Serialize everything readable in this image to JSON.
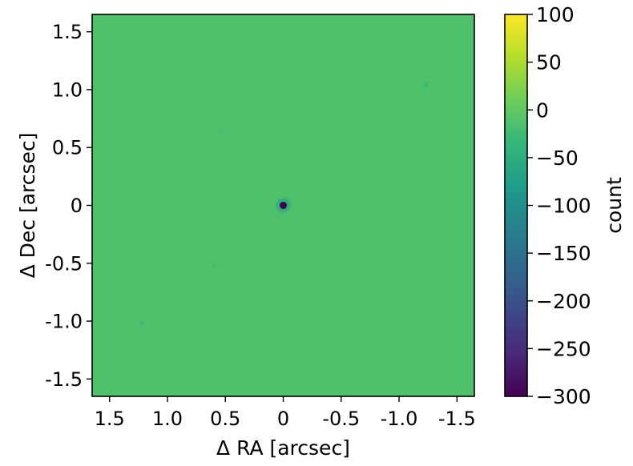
{
  "chart_data": {
    "type": "heatmap",
    "title": "",
    "xlabel": "Δ RA [arcsec]",
    "ylabel": "Δ Dec [arcsec]",
    "xlim": [
      1.65,
      -1.65
    ],
    "ylim": [
      -1.65,
      1.65
    ],
    "x_ticks": [
      1.5,
      1.0,
      0.5,
      0,
      -0.5,
      -1.0,
      -1.5
    ],
    "x_tick_labels": [
      "1.5",
      "1.0",
      "0.5",
      "0",
      "-0.5",
      "-1.0",
      "-1.5"
    ],
    "y_ticks": [
      1.5,
      1.0,
      0.5,
      0,
      -0.5,
      -1.0,
      -1.5
    ],
    "y_tick_labels": [
      "1.5",
      "1.0",
      "0.5",
      "0",
      "-0.5",
      "-1.0",
      "-1.5"
    ],
    "background_value": 0,
    "features": [
      {
        "x": 0.0,
        "y": 0.0,
        "value": -300
      },
      {
        "x": -1.23,
        "y": 1.04,
        "value": -60
      },
      {
        "x": 0.53,
        "y": 0.63,
        "value": -25
      },
      {
        "x": -0.6,
        "y": 0.52,
        "value": -20
      },
      {
        "x": 0.6,
        "y": -0.52,
        "value": -30
      },
      {
        "x": 1.22,
        "y": -1.02,
        "value": -35
      }
    ],
    "colorbar": {
      "label": "count",
      "colormap": "viridis",
      "range": [
        -300,
        100
      ],
      "ticks": [
        100,
        50,
        0,
        -50,
        -100,
        -150,
        -200,
        -250,
        -300
      ],
      "tick_labels": [
        "100",
        "50",
        "0",
        "−50",
        "−100",
        "−150",
        "−200",
        "−250",
        "−300"
      ]
    },
    "colors": {
      "background": "#4fc16b",
      "feature_core": "#440154",
      "viridis_stops": [
        "#440154",
        "#482878",
        "#3e4989",
        "#31688e",
        "#26828e",
        "#1f9e89",
        "#35b779",
        "#6ece58",
        "#b5de2b",
        "#fde725"
      ]
    }
  }
}
